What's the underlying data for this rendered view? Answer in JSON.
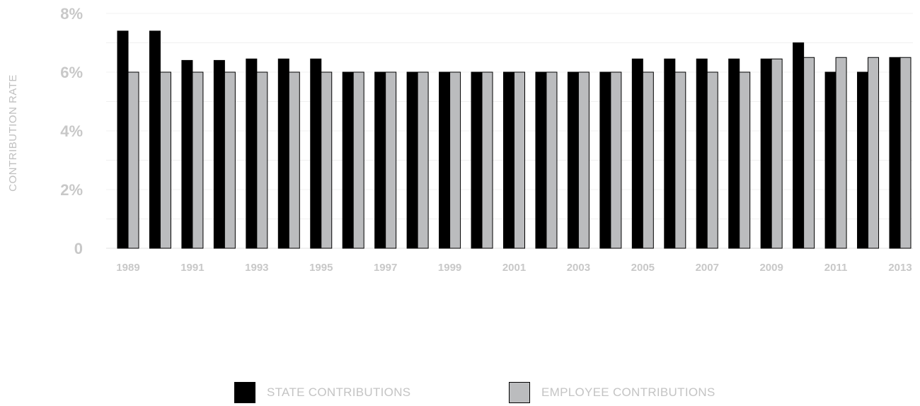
{
  "chart_data": {
    "type": "bar",
    "title": "",
    "xlabel": "",
    "ylabel": "CONTRIBUTION RATE",
    "ylim": [
      0,
      8
    ],
    "yticks": [
      {
        "value": 0,
        "label": "0"
      },
      {
        "value": 2,
        "label": "2%"
      },
      {
        "value": 4,
        "label": "4%"
      },
      {
        "value": 6,
        "label": "6%"
      },
      {
        "value": 8,
        "label": "8%"
      }
    ],
    "categories": [
      "1989",
      "1990",
      "1991",
      "1992",
      "1993",
      "1994",
      "1995",
      "1996",
      "1997",
      "1998",
      "1999",
      "2000",
      "2001",
      "2002",
      "2003",
      "2004",
      "2005",
      "2006",
      "2007",
      "2008",
      "2009",
      "2010",
      "2011",
      "2012",
      "2013"
    ],
    "xtick_labels": [
      "1989",
      "1991",
      "1993",
      "1995",
      "1997",
      "1999",
      "2001",
      "2003",
      "2005",
      "2007",
      "2009",
      "2011",
      "2013"
    ],
    "series": [
      {
        "name": "STATE CONTRIBUTIONS",
        "color": "#000000",
        "values": [
          7.4,
          7.4,
          6.4,
          6.4,
          6.45,
          6.45,
          6.45,
          6.0,
          6.0,
          6.0,
          6.0,
          6.0,
          6.0,
          6.0,
          6.0,
          6.0,
          6.45,
          6.45,
          6.45,
          6.45,
          6.45,
          7.0,
          6.0,
          6.0,
          6.5
        ]
      },
      {
        "name": "EMPLOYEE CONTRIBUTIONS",
        "color": "#bbbcbe",
        "values": [
          6.0,
          6.0,
          6.0,
          6.0,
          6.0,
          6.0,
          6.0,
          6.0,
          6.0,
          6.0,
          6.0,
          6.0,
          6.0,
          6.0,
          6.0,
          6.0,
          6.0,
          6.0,
          6.0,
          6.0,
          6.45,
          6.5,
          6.5,
          6.5,
          6.5
        ]
      }
    ],
    "grid": true,
    "legend": "bottom-center"
  }
}
